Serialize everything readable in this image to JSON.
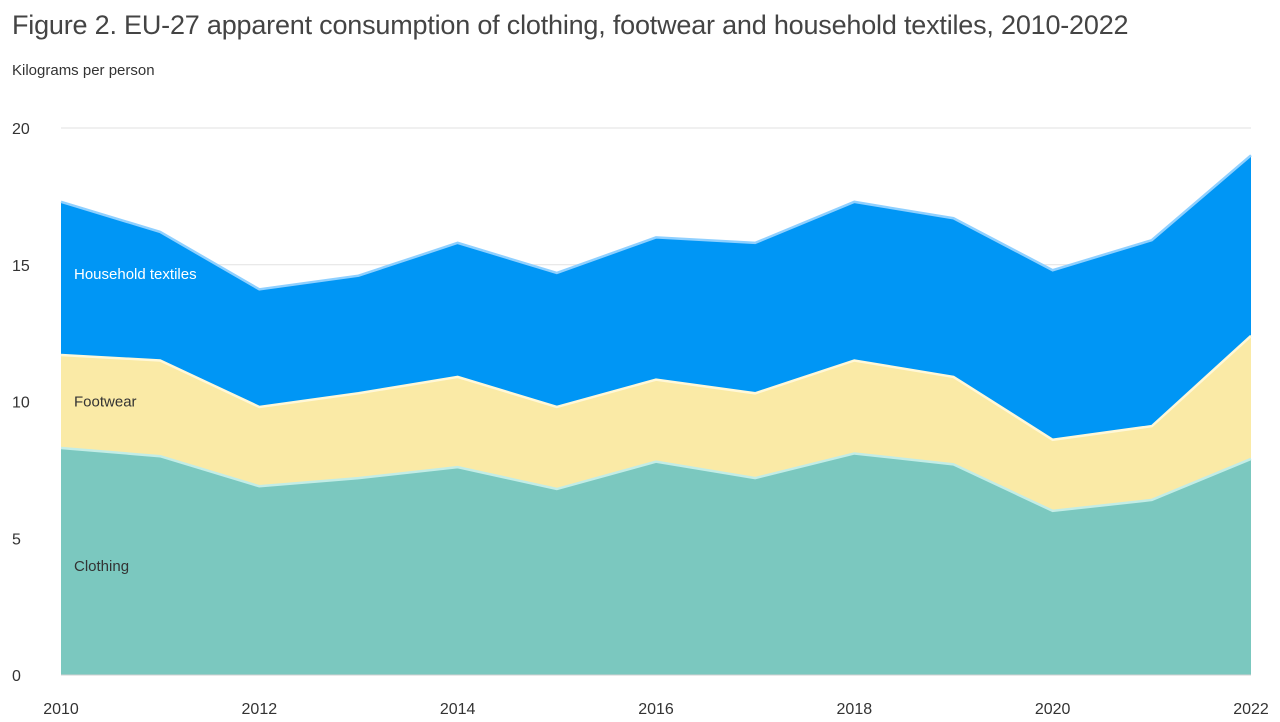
{
  "title": "Figure 2. EU-27 apparent consumption of clothing, footwear and household textiles, 2010-2022",
  "unit_label": "Kilograms per person",
  "chart_data": {
    "type": "area",
    "stacked": true,
    "x": [
      2010,
      2011,
      2012,
      2013,
      2014,
      2015,
      2016,
      2017,
      2018,
      2019,
      2020,
      2021,
      2022
    ],
    "xticks": [
      2010,
      2012,
      2014,
      2016,
      2018,
      2020,
      2022
    ],
    "ylim": [
      0,
      20
    ],
    "yticks": [
      0,
      5,
      10,
      15,
      20
    ],
    "grid": true,
    "legend": "inline labels",
    "series": [
      {
        "name": "Clothing",
        "color": "#7bc8bf",
        "label_color": "#333333",
        "line_color": "#c3ede6",
        "values": [
          8.3,
          8.0,
          6.9,
          7.2,
          7.6,
          6.8,
          7.8,
          7.2,
          8.1,
          7.7,
          6.0,
          6.4,
          7.9
        ]
      },
      {
        "name": "Footwear",
        "color": "#faeaa6",
        "label_color": "#333333",
        "line_color": "#fff8d8",
        "values": [
          3.4,
          3.5,
          2.9,
          3.1,
          3.3,
          3.0,
          3.0,
          3.1,
          3.4,
          3.2,
          2.6,
          2.7,
          4.5
        ]
      },
      {
        "name": "Household textiles",
        "color": "#0096f5",
        "label_color": "#ffffff",
        "line_color": "#8fd0ff",
        "values": [
          5.6,
          4.7,
          4.3,
          4.3,
          4.9,
          4.9,
          5.2,
          5.5,
          5.8,
          5.8,
          6.2,
          6.8,
          6.6
        ]
      }
    ]
  }
}
